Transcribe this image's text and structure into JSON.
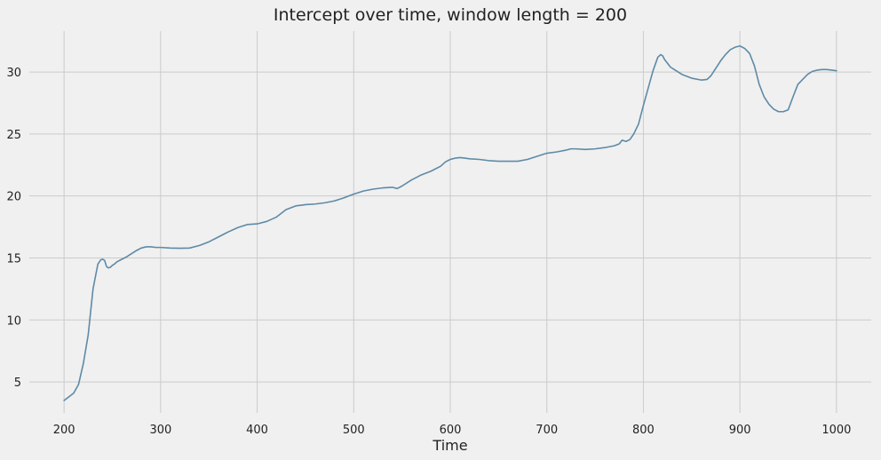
{
  "chart_data": {
    "type": "line",
    "title": "Intercept over time, window length = 200",
    "xlabel": "Time",
    "ylabel": "",
    "xlim": [
      164,
      1036
    ],
    "ylim": [
      2.5,
      33.3
    ],
    "xticks": [
      200,
      300,
      400,
      500,
      600,
      700,
      800,
      900,
      1000
    ],
    "yticks": [
      5,
      10,
      15,
      20,
      25,
      30
    ],
    "grid": true,
    "legend": "none",
    "colors": {
      "background": "#f0f0f0",
      "grid": "#cbcbcb",
      "line": "#5e8aa6",
      "text": "#000000"
    },
    "series": [
      {
        "x": [
          200,
          205,
          210,
          215,
          220,
          225,
          230,
          235,
          238,
          240,
          242,
          244,
          246,
          248,
          250,
          252,
          255,
          260,
          265,
          270,
          275,
          280,
          285,
          290,
          295,
          300,
          310,
          320,
          330,
          340,
          350,
          360,
          370,
          380,
          390,
          400,
          410,
          420,
          430,
          440,
          445,
          450,
          460,
          470,
          480,
          490,
          495,
          500,
          510,
          520,
          530,
          540,
          545,
          550,
          560,
          570,
          580,
          590,
          595,
          600,
          605,
          610,
          615,
          620,
          630,
          640,
          650,
          660,
          670,
          680,
          690,
          700,
          710,
          720,
          725,
          730,
          740,
          750,
          760,
          770,
          775,
          778,
          782,
          786,
          790,
          795,
          800,
          805,
          810,
          815,
          818,
          820,
          822,
          825,
          828,
          832,
          836,
          840,
          850,
          860,
          866,
          870,
          875,
          880,
          885,
          890,
          895,
          900,
          905,
          910,
          915,
          920,
          925,
          930,
          935,
          940,
          945,
          950,
          955,
          960,
          965,
          970,
          975,
          980,
          985,
          990,
          995,
          1000
        ],
        "y": [
          3.5,
          3.8,
          4.1,
          4.8,
          6.5,
          8.8,
          12.5,
          14.5,
          14.85,
          14.9,
          14.8,
          14.3,
          14.2,
          14.25,
          14.4,
          14.5,
          14.7,
          14.9,
          15.1,
          15.35,
          15.6,
          15.8,
          15.9,
          15.9,
          15.85,
          15.85,
          15.8,
          15.78,
          15.8,
          16.0,
          16.3,
          16.7,
          17.1,
          17.45,
          17.7,
          17.75,
          17.95,
          18.3,
          18.9,
          19.2,
          19.25,
          19.3,
          19.35,
          19.45,
          19.6,
          19.85,
          20.0,
          20.15,
          20.4,
          20.55,
          20.65,
          20.7,
          20.6,
          20.8,
          21.3,
          21.7,
          22.0,
          22.4,
          22.75,
          22.95,
          23.05,
          23.1,
          23.05,
          23.0,
          22.95,
          22.85,
          22.8,
          22.8,
          22.8,
          22.95,
          23.2,
          23.45,
          23.55,
          23.7,
          23.8,
          23.8,
          23.75,
          23.8,
          23.9,
          24.05,
          24.2,
          24.5,
          24.4,
          24.55,
          25.0,
          25.8,
          27.3,
          28.7,
          30.1,
          31.2,
          31.4,
          31.3,
          31.0,
          30.7,
          30.4,
          30.2,
          30.0,
          29.8,
          29.5,
          29.35,
          29.4,
          29.7,
          30.3,
          30.9,
          31.4,
          31.8,
          32.0,
          32.1,
          31.9,
          31.5,
          30.5,
          29.0,
          28.0,
          27.4,
          27.0,
          26.8,
          26.8,
          26.95,
          28.0,
          29.0,
          29.4,
          29.8,
          30.05,
          30.15,
          30.2,
          30.2,
          30.15,
          30.1
        ]
      }
    ]
  }
}
